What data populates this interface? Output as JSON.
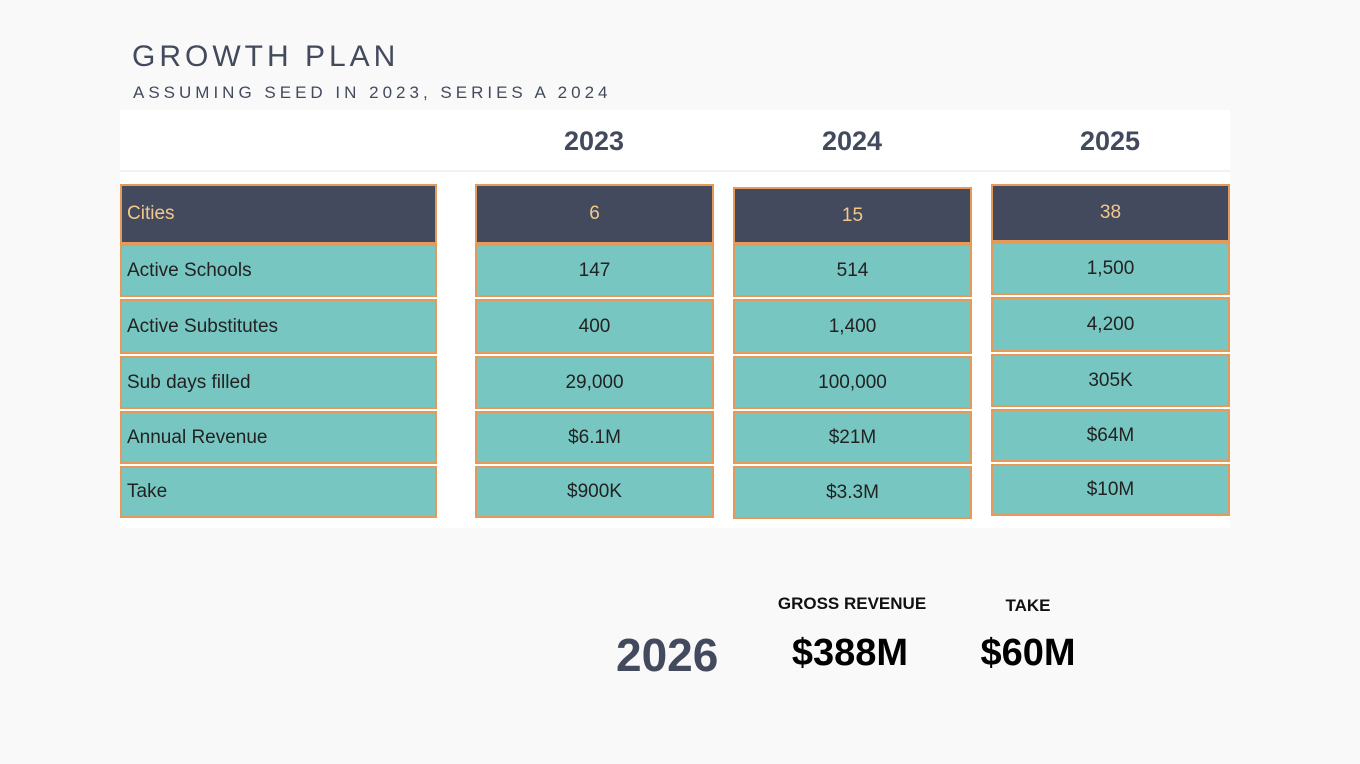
{
  "header": {
    "title": "GROWTH PLAN",
    "subtitle": "ASSUMING SEED IN 2023, SERIES A 2024"
  },
  "table": {
    "years": [
      "2023",
      "2024",
      "2025"
    ],
    "rows": [
      {
        "label": "Cities",
        "values": [
          "6",
          "15",
          "38"
        ]
      },
      {
        "label": "Active Schools",
        "values": [
          "147",
          "514",
          "1,500"
        ]
      },
      {
        "label": "Active Substitutes",
        "values": [
          "400",
          "1,400",
          "4,200"
        ]
      },
      {
        "label": "Sub days filled",
        "values": [
          "29,000",
          "100,000",
          "305K"
        ]
      },
      {
        "label": "Annual Revenue",
        "values": [
          "$6.1M",
          "$21M",
          "$64M"
        ]
      },
      {
        "label": "Take",
        "values": [
          "$900K",
          "$3.3M",
          "$10M"
        ]
      }
    ]
  },
  "projection": {
    "year": "2026",
    "gross_revenue_label": "GROSS REVENUE",
    "gross_revenue_value": "$388M",
    "take_label": "TAKE",
    "take_value": "$60M"
  },
  "colors": {
    "dark_row": "#434a5d",
    "teal_cell": "#78c6c1",
    "cell_border": "#e59a5a",
    "highlight_text": "#f3c98b"
  }
}
